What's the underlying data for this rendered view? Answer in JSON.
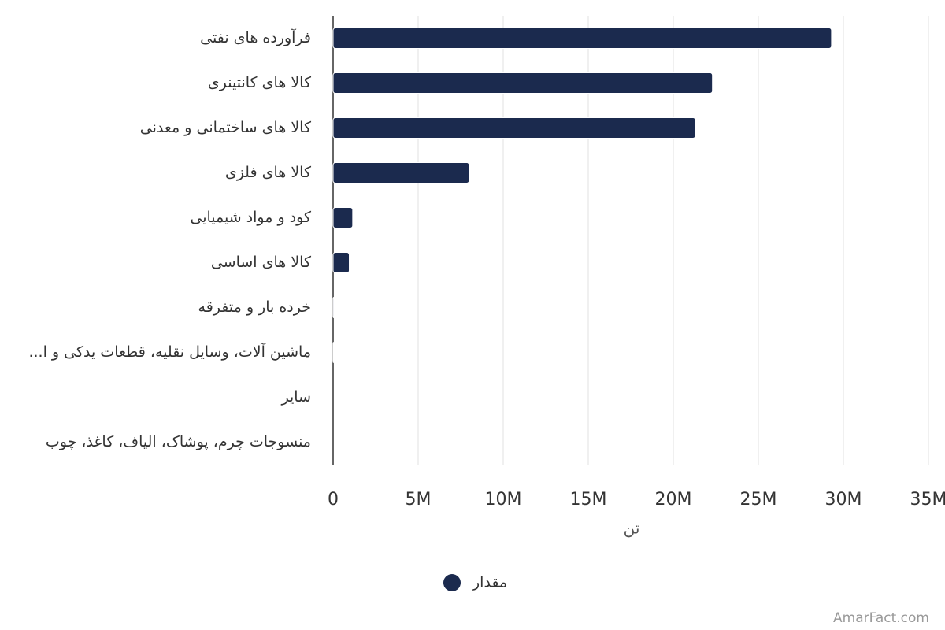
{
  "chart_data": {
    "type": "bar",
    "orientation": "horizontal",
    "categories": [
      "فرآورده های نفتی",
      "کالا های کانتینری",
      "کالا های ساختمانی و معدنی",
      "کالا های فلزی",
      "کود و مواد شیمیایی",
      "کالا های اساسی",
      "خرده بار و متفرقه",
      "ماشین آلات، وسایل نقلیه، قطعات یدکی و ا...",
      "سایر",
      "منسوجات چرم، پوشاک، الیاف، کاغذ، چوب"
    ],
    "series": [
      {
        "name": "مقدار",
        "color": "#1b2a4e",
        "values": [
          29300000,
          22300000,
          21300000,
          8000000,
          1150000,
          950000,
          50000,
          30000,
          0,
          0
        ]
      }
    ],
    "xlim": [
      0,
      35000000
    ],
    "xticks": [
      0,
      {
        "value": 5000000,
        "label": "5M"
      },
      {
        "value": 10000000,
        "label": "10M"
      },
      {
        "value": 15000000,
        "label": "15M"
      },
      {
        "value": 20000000,
        "label": "20M"
      },
      {
        "value": 25000000,
        "label": "25M"
      },
      {
        "value": 30000000,
        "label": "30M"
      },
      {
        "value": 35000000,
        "label": "35M"
      }
    ],
    "xlabel": "تن",
    "grid": true,
    "legend": "bottom",
    "watermark": "AmarFact.com"
  }
}
